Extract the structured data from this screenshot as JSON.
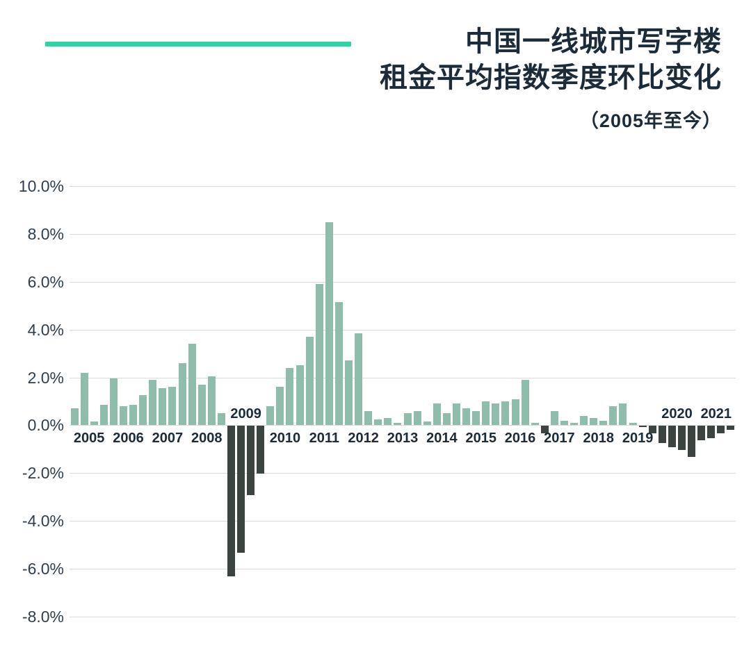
{
  "header": {
    "title_line1": "中国一线城市写字楼",
    "title_line2": "租金平均指数季度环比变化",
    "subtitle": "（2005年至今）",
    "accent_color": "#2BD6A4",
    "title_color": "#1B2B3A"
  },
  "chart_data": {
    "type": "bar",
    "title": "中国一线城市写字楼租金平均指数季度环比变化（2005年至今）",
    "unit": "%",
    "ylim": [
      -8,
      10
    ],
    "ytick_step": 2,
    "ytick_labels": [
      "10.0%",
      "8.0%",
      "6.0%",
      "4.0%",
      "2.0%",
      "0.0%",
      "-2.0%",
      "-4.0%",
      "-6.0%",
      "-8.0%"
    ],
    "grid": true,
    "positive_color": "#8FBDAC",
    "negative_color": "#3B443F",
    "grid_color": "#DADADA",
    "years": [
      {
        "label": "2005",
        "label_above": false,
        "values": [
          0.7,
          2.2,
          0.15,
          0.85
        ]
      },
      {
        "label": "2006",
        "label_above": false,
        "values": [
          1.95,
          0.8,
          0.85,
          1.25
        ]
      },
      {
        "label": "2007",
        "label_above": false,
        "values": [
          1.9,
          1.55,
          1.6,
          2.6
        ]
      },
      {
        "label": "2008",
        "label_above": false,
        "values": [
          3.4,
          1.7,
          2.05,
          0.5
        ]
      },
      {
        "label": "2009",
        "label_above": true,
        "values": [
          -6.3,
          -5.3,
          -2.9,
          -2.0
        ]
      },
      {
        "label": "2010",
        "label_above": false,
        "values": [
          0.8,
          1.6,
          2.4,
          2.5
        ]
      },
      {
        "label": "2011",
        "label_above": false,
        "values": [
          3.7,
          5.9,
          8.5,
          5.15
        ]
      },
      {
        "label": "2012",
        "label_above": false,
        "values": [
          2.7,
          3.85,
          0.6,
          0.25
        ]
      },
      {
        "label": "2013",
        "label_above": false,
        "values": [
          0.3,
          0.1,
          0.5,
          0.6
        ]
      },
      {
        "label": "2014",
        "label_above": false,
        "values": [
          0.15,
          0.9,
          0.5,
          0.9
        ]
      },
      {
        "label": "2015",
        "label_above": false,
        "values": [
          0.7,
          0.6,
          1.0,
          0.9
        ]
      },
      {
        "label": "2016",
        "label_above": false,
        "values": [
          1.0,
          1.1,
          1.9,
          0.1
        ]
      },
      {
        "label": "2017",
        "label_above": false,
        "values": [
          -0.3,
          0.6,
          0.2,
          0.1
        ]
      },
      {
        "label": "2018",
        "label_above": false,
        "values": [
          0.4,
          0.3,
          0.2,
          0.8
        ]
      },
      {
        "label": "2019",
        "label_above": false,
        "values": [
          0.9,
          0.1,
          -0.05,
          -0.3
        ]
      },
      {
        "label": "2020",
        "label_above": true,
        "values": [
          -0.7,
          -0.9,
          -1.0,
          -1.3
        ]
      },
      {
        "label": "2021",
        "label_above": true,
        "values": [
          -0.6,
          -0.5,
          -0.3,
          -0.15
        ]
      }
    ]
  }
}
